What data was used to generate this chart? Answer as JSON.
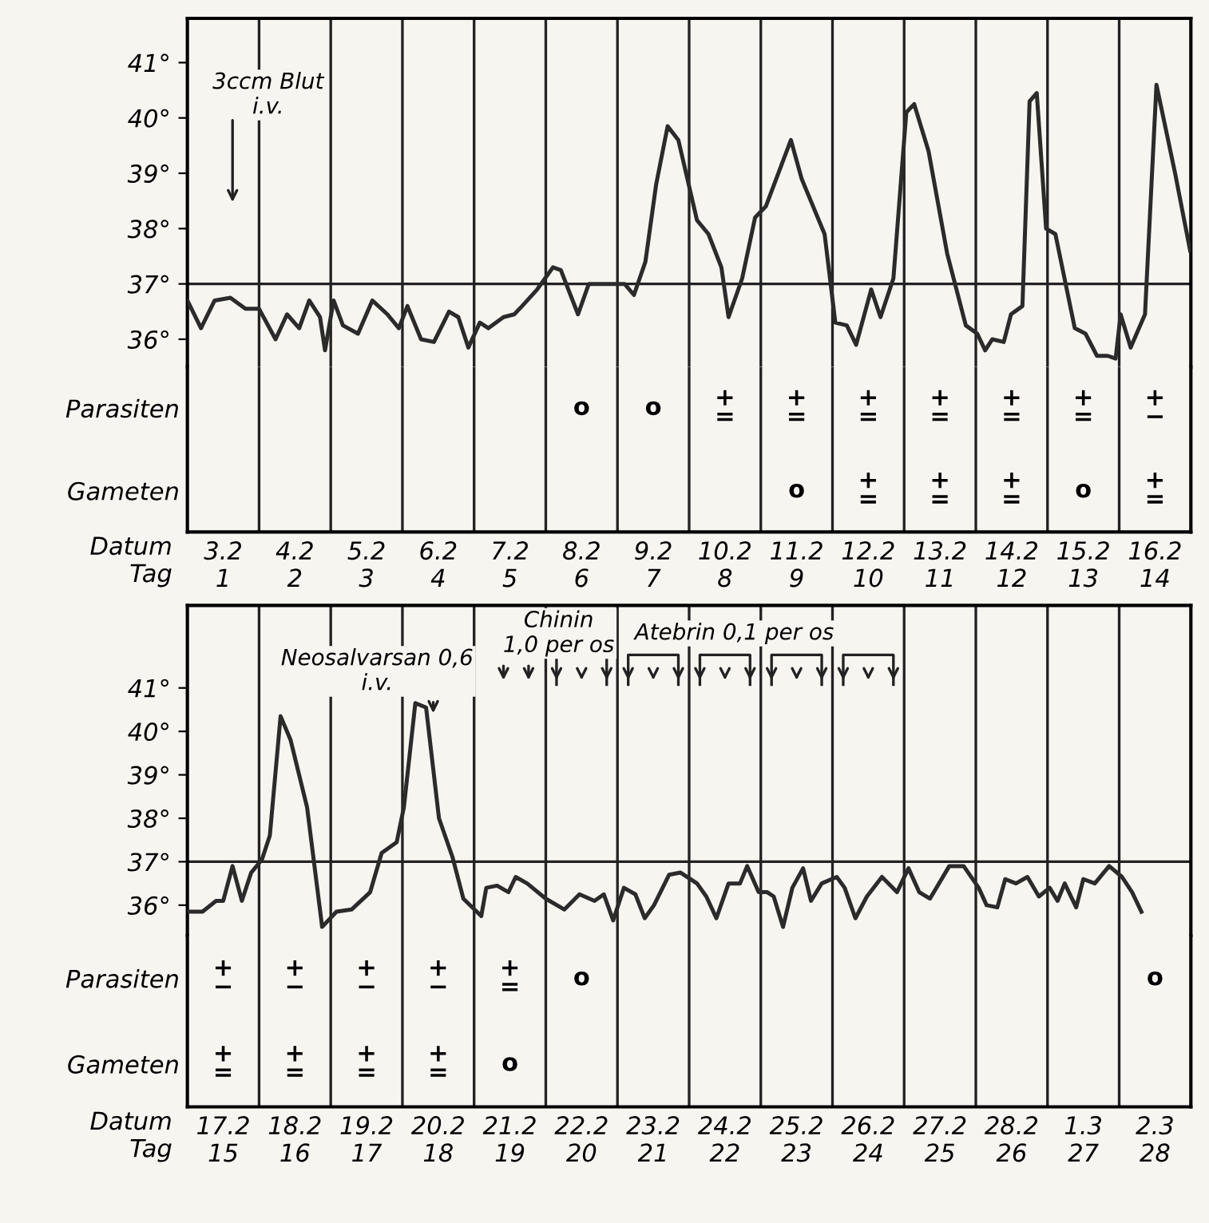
{
  "chart_data": [
    {
      "type": "line",
      "xlim": [
        0.5,
        14.5
      ],
      "xticks": [
        1,
        2,
        3,
        4,
        5,
        6,
        7,
        8,
        9,
        10,
        11,
        12,
        13,
        14
      ],
      "tick_labels": "y",
      "ylim": [
        35.5,
        41.8
      ],
      "yticks": [
        {
          "value": 36,
          "label": "36°"
        },
        {
          "value": 37,
          "label": "37°"
        },
        {
          "value": 38,
          "label": "38°"
        },
        {
          "value": 39,
          "label": "39°"
        },
        {
          "value": 40,
          "label": "40°"
        },
        {
          "value": 41,
          "label": "41°"
        }
      ],
      "grid": false,
      "marker": "none",
      "line_style": "solid",
      "series": [
        {
          "color": "#2b2b2b",
          "x": [
            0.5,
            0.69,
            0.88,
            1.1,
            1.31,
            1.5,
            1.73,
            1.89,
            2.06,
            2.2,
            2.35,
            2.42,
            2.54,
            2.67,
            2.88,
            3.08,
            3.29,
            3.45,
            3.57,
            3.76,
            3.94,
            4.15,
            4.28,
            4.42,
            4.58,
            4.7,
            4.91,
            5.06,
            5.17,
            5.38,
            5.6,
            5.71,
            5.95,
            6.1,
            6.6,
            6.73,
            6.89,
            7.04,
            7.2,
            7.35,
            7.61,
            7.77,
            7.95,
            8.05,
            8.24,
            8.42,
            8.57,
            8.92,
            9.07,
            9.39,
            9.54,
            9.7,
            9.83,
            10.04,
            10.17,
            10.35,
            10.53,
            10.64,
            10.84,
            11.1,
            11.36,
            11.52,
            11.63,
            11.73,
            11.89,
            11.99,
            12.15,
            12.25,
            12.35,
            12.48,
            12.61,
            12.88,
            13.03,
            13.19,
            13.34,
            13.45,
            13.52,
            13.66,
            13.86,
            14.02,
            14.28,
            14.49
          ],
          "values": [
            36.7,
            36.2,
            36.7,
            36.75,
            36.55,
            36.55,
            36.0,
            36.45,
            36.2,
            36.7,
            36.4,
            35.8,
            36.7,
            36.25,
            36.1,
            36.7,
            36.45,
            36.2,
            36.6,
            36.0,
            35.95,
            36.5,
            36.4,
            35.85,
            36.3,
            36.2,
            36.4,
            36.45,
            36.6,
            36.9,
            37.3,
            37.25,
            36.45,
            37.0,
            37.0,
            36.8,
            37.4,
            38.8,
            39.85,
            39.6,
            38.15,
            37.9,
            37.3,
            36.4,
            37.1,
            38.2,
            38.4,
            39.6,
            38.9,
            37.9,
            36.3,
            36.25,
            35.9,
            36.9,
            36.4,
            37.1,
            40.1,
            40.25,
            39.4,
            37.55,
            36.25,
            36.1,
            35.8,
            36.0,
            35.95,
            36.45,
            36.6,
            40.3,
            40.45,
            38.0,
            37.9,
            36.2,
            36.1,
            35.7,
            35.7,
            35.65,
            36.45,
            35.85,
            36.45,
            40.6,
            39.0,
            37.6
          ]
        }
      ],
      "ref_lines": [
        {
          "axis": "y",
          "value": 37
        }
      ],
      "annotations": [
        "3ccm Blut\ni.v."
      ]
    },
    {
      "type": "heatmap",
      "xlabel": "Datum\nTag",
      "categories": [
        "3.2\n1",
        "4.2\n2",
        "5.2\n3",
        "6.2\n4",
        "7.2\n5",
        "8.2\n6",
        "9.2\n7",
        "10.2\n8",
        "11.2\n9",
        "12.2\n10",
        "13.2\n11",
        "14.2\n12",
        "15.2\n13",
        "16.2\n14"
      ],
      "y_categories": [
        "Parasiten",
        "Gameten"
      ],
      "cells": [
        [
          null,
          null,
          null,
          null,
          null,
          null,
          null,
          null,
          null,
          null,
          null,
          null,
          null,
          null
        ],
        [
          null,
          null,
          null,
          null,
          null,
          null,
          null,
          null,
          null,
          null,
          null,
          null,
          null,
          null
        ]
      ],
      "cell_labels": [
        [
          null,
          null,
          null,
          null,
          null,
          "o",
          "o",
          "+\n=",
          "+\n=",
          "+\n=",
          "+\n=",
          "+\n=",
          "+\n=",
          "+\n−"
        ],
        [
          null,
          null,
          null,
          null,
          null,
          null,
          null,
          null,
          "o",
          "+\n=",
          "+\n=",
          "+\n=",
          "o",
          "+\n="
        ]
      ]
    },
    {
      "type": "line",
      "xlim": [
        14.5,
        28.5
      ],
      "xticks": [
        15,
        16,
        17,
        18,
        19,
        20,
        21,
        22,
        23,
        24,
        25,
        26,
        27,
        28
      ],
      "tick_labels": "y",
      "ylim": [
        35.3,
        42.9
      ],
      "yticks": [
        {
          "value": 36,
          "label": "36°"
        },
        {
          "value": 37,
          "label": "37°"
        },
        {
          "value": 38,
          "label": "38°"
        },
        {
          "value": 39,
          "label": "39°"
        },
        {
          "value": 40,
          "label": "40°"
        },
        {
          "value": 41,
          "label": "41°"
        }
      ],
      "grid": false,
      "marker": "none",
      "line_style": "solid",
      "series": [
        {
          "color": "#2b2b2b",
          "x": [
            14.52,
            14.71,
            14.9,
            15.0,
            15.13,
            15.26,
            15.39,
            15.54,
            15.65,
            15.8,
            15.94,
            16.17,
            16.38,
            16.58,
            16.79,
            17.05,
            17.21,
            17.42,
            17.52,
            17.68,
            17.83,
            18.01,
            18.2,
            18.35,
            18.6,
            18.67,
            18.82,
            18.98,
            19.08,
            19.24,
            19.5,
            19.76,
            19.97,
            20.18,
            20.31,
            20.44,
            20.59,
            20.75,
            20.88,
            21.01,
            21.22,
            21.38,
            21.61,
            21.74,
            21.88,
            22.05,
            22.21,
            22.31,
            22.47,
            22.59,
            22.68,
            22.81,
            22.94,
            23.09,
            23.2,
            23.35,
            23.56,
            23.67,
            23.82,
            23.98,
            24.19,
            24.4,
            24.56,
            24.71,
            24.86,
            25.13,
            25.33,
            25.54,
            25.65,
            25.8,
            25.91,
            26.06,
            26.22,
            26.38,
            26.53,
            26.64,
            26.74,
            26.9,
            27.0,
            27.16,
            27.36,
            27.54,
            27.68,
            27.81
          ],
          "values": [
            35.85,
            35.85,
            36.1,
            36.1,
            36.9,
            36.1,
            36.75,
            37.05,
            37.6,
            40.35,
            39.8,
            38.25,
            35.5,
            35.85,
            35.9,
            36.3,
            37.2,
            37.45,
            38.25,
            40.65,
            40.55,
            38.0,
            37.1,
            36.15,
            35.75,
            36.4,
            36.45,
            36.3,
            36.65,
            36.5,
            36.15,
            35.9,
            36.25,
            36.1,
            36.25,
            35.65,
            36.4,
            36.25,
            35.7,
            36.0,
            36.7,
            36.75,
            36.5,
            36.2,
            35.7,
            36.5,
            36.5,
            36.9,
            36.3,
            36.3,
            36.2,
            35.5,
            36.4,
            36.85,
            36.1,
            36.5,
            36.65,
            36.4,
            35.7,
            36.2,
            36.65,
            36.3,
            36.85,
            36.3,
            36.15,
            36.9,
            36.9,
            36.4,
            36.0,
            35.95,
            36.6,
            36.5,
            36.65,
            36.2,
            36.4,
            36.1,
            36.5,
            35.95,
            36.6,
            36.5,
            36.9,
            36.65,
            36.3,
            35.85
          ]
        }
      ],
      "ref_lines": [
        {
          "axis": "y",
          "value": 37
        }
      ],
      "annotations": [
        "Neosalvarsan 0,6\ni.v.",
        "Chinin\n1,0 per os",
        "Atebrin 0,1 per os"
      ]
    },
    {
      "type": "heatmap",
      "xlabel": "Datum\nTag",
      "categories": [
        "17.2\n15",
        "18.2\n16",
        "19.2\n17",
        "20.2\n18",
        "21.2\n19",
        "22.2\n20",
        "23.2\n21",
        "24.2\n22",
        "25.2\n23",
        "26.2\n24",
        "27.2\n25",
        "28.2\n26",
        "1.3\n27",
        "2.3\n28"
      ],
      "y_categories": [
        "Parasiten",
        "Gameten"
      ],
      "cells": [
        [
          null,
          null,
          null,
          null,
          null,
          null,
          null,
          null,
          null,
          null,
          null,
          null,
          null,
          null
        ],
        [
          null,
          null,
          null,
          null,
          null,
          null,
          null,
          null,
          null,
          null,
          null,
          null,
          null,
          null
        ]
      ],
      "cell_labels": [
        [
          "+\n−",
          "+\n−",
          "+\n−",
          "+\n−",
          "+\n=",
          "o",
          null,
          null,
          null,
          null,
          null,
          null,
          null,
          "o"
        ],
        [
          "+\n=",
          "+\n=",
          "+\n=",
          "+\n=",
          "o",
          null,
          null,
          null,
          null,
          null,
          null,
          null,
          null,
          null
        ]
      ]
    }
  ]
}
